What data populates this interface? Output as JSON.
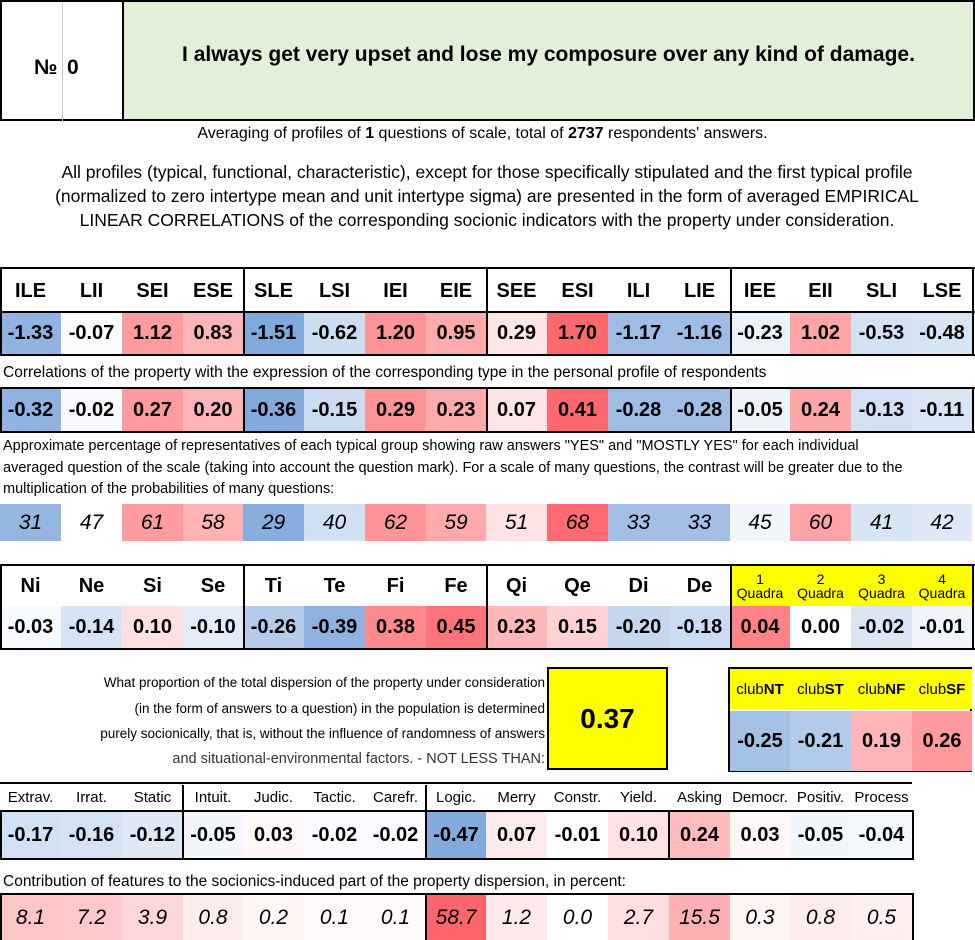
{
  "header": {
    "number_label": "№",
    "number_value": "0",
    "question": "I always get very upset and lose my composure over any kind of damage."
  },
  "averaging": {
    "pre": "Averaging of profiles of ",
    "count": "1",
    "mid": " questions of scale, total of ",
    "respondents": "2737",
    "post": " respondents' answers."
  },
  "description": "All profiles (typical, functional, characteristic), except for those specifically stipulated and the first typical profile (normalized to zero intertype mean and unit intertype sigma) are presented in the form of averaged EMPIRICAL LINEAR CORRELATIONS of the corresponding socionic indicators with the property under consideration.",
  "types": {
    "headers": [
      "ILE",
      "LII",
      "SEI",
      "ESE",
      "SLE",
      "LSI",
      "IEI",
      "EIE",
      "SEE",
      "ESI",
      "ILI",
      "LIE",
      "IEE",
      "EII",
      "SLI",
      "LSE"
    ],
    "normalized": [
      "-1.33",
      "-0.07",
      "1.12",
      "0.83",
      "-1.51",
      "-0.62",
      "1.20",
      "0.95",
      "0.29",
      "1.70",
      "-1.17",
      "-1.16",
      "-0.23",
      "1.02",
      "-0.53",
      "-0.48"
    ],
    "correlations_note": "Correlations of the property with the expression of the corresponding type in the personal profile of respondents",
    "correlations": [
      "-0.32",
      "-0.02",
      "0.27",
      "0.20",
      "-0.36",
      "-0.15",
      "0.29",
      "0.23",
      "0.07",
      "0.41",
      "-0.28",
      "-0.28",
      "-0.05",
      "0.24",
      "-0.13",
      "-0.11"
    ],
    "percent_note": "Approximate percentage of representatives of each typical group showing raw answers \"YES\" and \"MOSTLY YES\" for each individual averaged question of the scale (taking into account the question mark). For a scale of many questions, the contrast will be greater due to the multiplication of the probabilities of many questions:",
    "percentages": [
      "31",
      "47",
      "61",
      "58",
      "29",
      "40",
      "62",
      "59",
      "51",
      "68",
      "33",
      "33",
      "45",
      "60",
      "41",
      "42"
    ]
  },
  "functions": {
    "headers": [
      "Ni",
      "Ne",
      "Si",
      "Se",
      "Ti",
      "Te",
      "Fi",
      "Fe",
      "Qi",
      "Qe",
      "Di",
      "De"
    ],
    "values": [
      "-0.03",
      "-0.14",
      "0.10",
      "-0.10",
      "-0.26",
      "-0.39",
      "0.38",
      "0.45",
      "0.23",
      "0.15",
      "-0.20",
      "-0.18"
    ],
    "quadras": [
      {
        "num": "1",
        "label": "Quadra",
        "value": "0.04"
      },
      {
        "num": "2",
        "label": "Quadra",
        "value": "0.00"
      },
      {
        "num": "3",
        "label": "Quadra",
        "value": "-0.02"
      },
      {
        "num": "4",
        "label": "Quadra",
        "value": "-0.01"
      }
    ]
  },
  "dispersion": {
    "lines": [
      "What proportion of the total dispersion of the property under consideration",
      "(in the form of answers to a question) in the population is determined",
      "purely socionically, that is, without the influence of randomness of answers",
      "and situational-environmental factors. - NOT LESS THAN:"
    ],
    "value": "0.37"
  },
  "clubs": [
    {
      "prefix": "club",
      "suffix": "NT",
      "value": "-0.25"
    },
    {
      "prefix": "club",
      "suffix": "ST",
      "value": "-0.21"
    },
    {
      "prefix": "club",
      "suffix": "NF",
      "value": "0.19"
    },
    {
      "prefix": "club",
      "suffix": "SF",
      "value": "0.26"
    }
  ],
  "traits": {
    "headers": [
      "Extrav.",
      "Irrat.",
      "Static",
      "Intuit.",
      "Judic.",
      "Tactic.",
      "Carefr.",
      "Logic.",
      "Merry",
      "Constr.",
      "Yield.",
      "Asking",
      "Democr.",
      "Positiv.",
      "Process"
    ],
    "values": [
      "-0.17",
      "-0.16",
      "-0.12",
      "-0.05",
      "0.03",
      "-0.02",
      "-0.02",
      "-0.47",
      "0.07",
      "-0.01",
      "0.10",
      "0.24",
      "0.03",
      "-0.05",
      "-0.04"
    ],
    "contribution_note": "Contribution of features to the socionics-induced part of the property dispersion, in percent:",
    "contributions": [
      "8.1",
      "7.2",
      "3.9",
      "0.8",
      "0.2",
      "0.1",
      "0.1",
      "58.7",
      "1.2",
      "0.0",
      "2.7",
      "15.5",
      "0.3",
      "0.8",
      "0.5"
    ]
  },
  "colors": {
    "header_green": "#e2efd9",
    "highlight_yellow": "#ffff00",
    "negative_base": "#5b8fd0",
    "positive_base": "#e8454b"
  }
}
